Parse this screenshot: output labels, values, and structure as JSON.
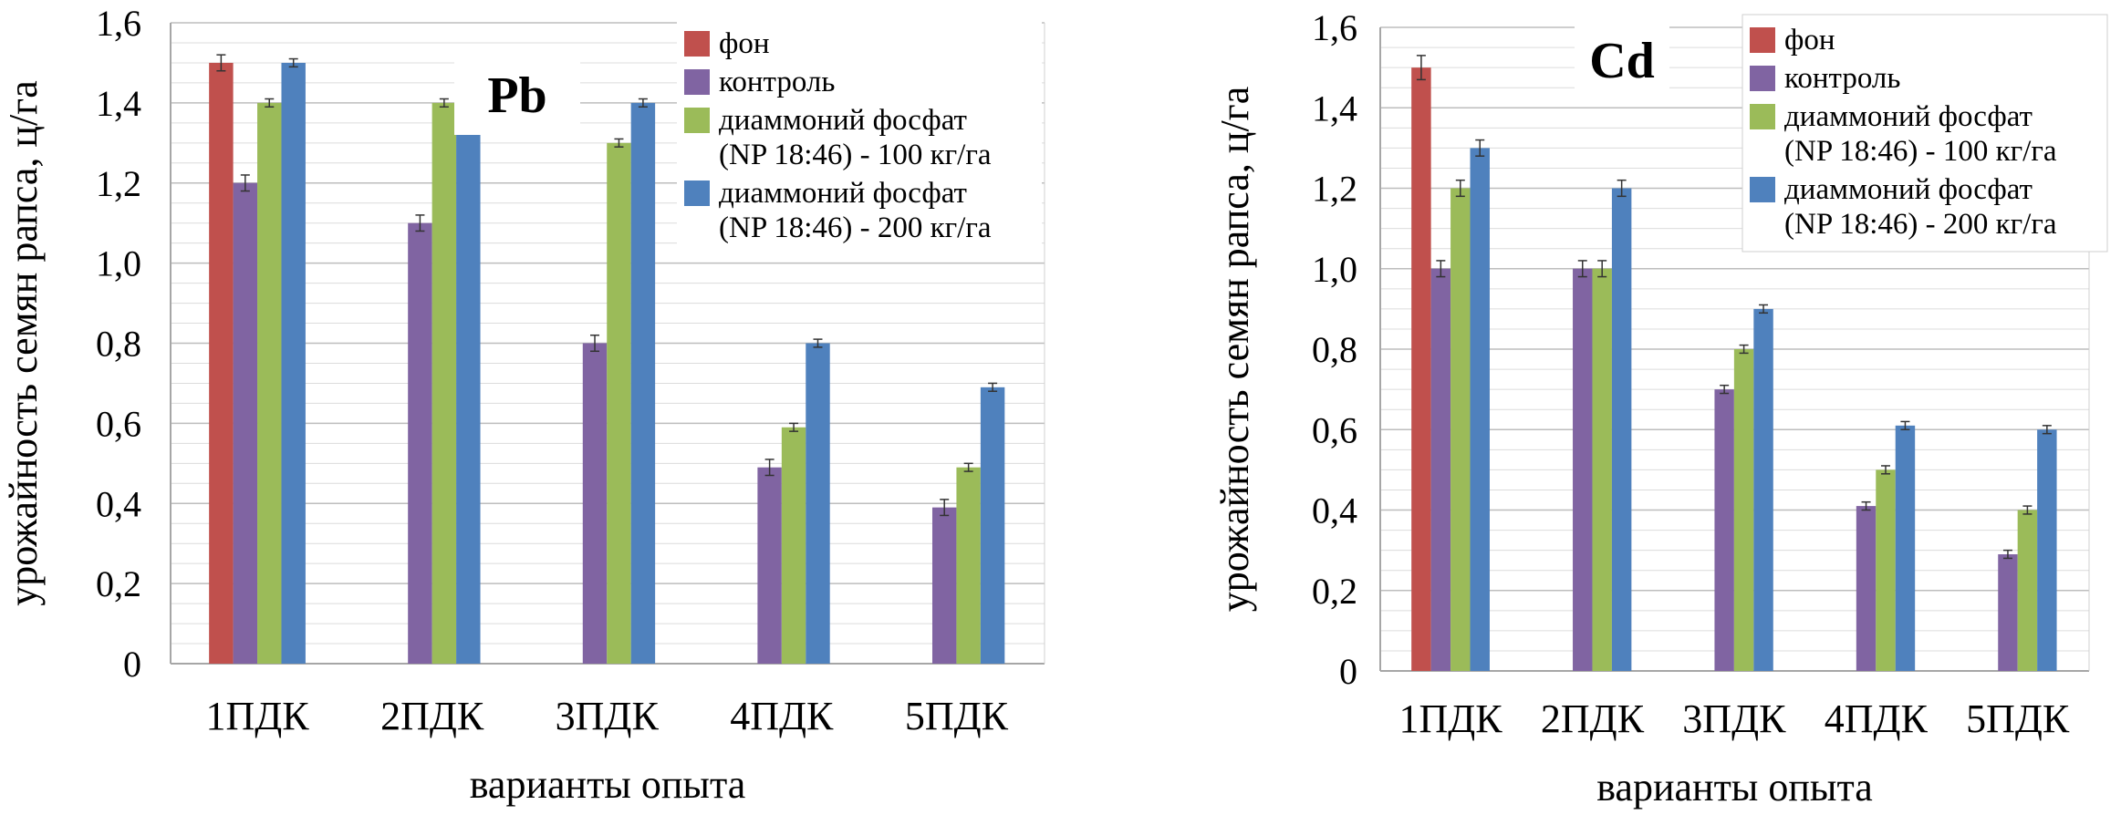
{
  "chart_data": [
    {
      "type": "bar",
      "title": "Pb",
      "xlabel": "варианты опыта",
      "ylabel": "урожайность семян рапса, ц/га",
      "ylim": [
        0,
        1.6
      ],
      "yticks": [
        "0",
        "0,2",
        "0,4",
        "0,6",
        "0,8",
        "1,0",
        "1,2",
        "1,4",
        "1,6"
      ],
      "grid": true,
      "legend_position": "top-right",
      "categories": [
        "1ПДК",
        "2ПДК",
        "3ПДК",
        "4ПДК",
        "5ПДК"
      ],
      "legend": [
        {
          "lines": [
            "фон"
          ]
        },
        {
          "lines": [
            "контроль"
          ]
        },
        {
          "lines": [
            "диаммоний фосфат",
            "(NP 18:46) - 100 кг/га"
          ]
        },
        {
          "lines": [
            "диаммоний фосфат",
            "(NP 18:46) - 200 кг/га"
          ]
        }
      ],
      "series": [
        {
          "name": "фон",
          "color": "#c0504d",
          "values": [
            1.5,
            null,
            null,
            null,
            null
          ],
          "errors": [
            0.02,
            null,
            null,
            null,
            null
          ]
        },
        {
          "name": "контроль",
          "color": "#8064a2",
          "values": [
            1.2,
            1.1,
            0.8,
            0.49,
            0.39
          ],
          "errors": [
            0.02,
            0.02,
            0.02,
            0.02,
            0.02
          ]
        },
        {
          "name": "диаммоний фосфат (NP 18:46) - 100 кг/га",
          "color": "#9bbb59",
          "values": [
            1.4,
            1.4,
            1.3,
            0.59,
            0.49
          ],
          "errors": [
            0.01,
            0.01,
            0.01,
            0.01,
            0.01
          ]
        },
        {
          "name": "диаммоний фосфат (NP 18:46) - 200 кг/га",
          "color": "#4f81bd",
          "values": [
            1.5,
            1.4,
            1.4,
            0.8,
            0.69
          ],
          "errors": [
            0.01,
            0.01,
            0.01,
            0.01,
            0.01
          ]
        }
      ]
    },
    {
      "type": "bar",
      "title": "Cd",
      "xlabel": "варианты опыта",
      "ylabel": "урожайность семян рапса, ц/га",
      "ylim": [
        0,
        1.6
      ],
      "yticks": [
        "0",
        "0,2",
        "0,4",
        "0,6",
        "0,8",
        "1,0",
        "1,2",
        "1,4",
        "1,6"
      ],
      "grid": true,
      "legend_position": "top-right",
      "categories": [
        "1ПДК",
        "2ПДК",
        "3ПДК",
        "4ПДК",
        "5ПДК"
      ],
      "legend": [
        {
          "lines": [
            "фон"
          ]
        },
        {
          "lines": [
            "контроль"
          ]
        },
        {
          "lines": [
            "диаммоний фосфат",
            "(NP 18:46) - 100 кг/га"
          ]
        },
        {
          "lines": [
            "диаммоний фосфат",
            "(NP 18:46) - 200 кг/га"
          ]
        }
      ],
      "series": [
        {
          "name": "фон",
          "color": "#c0504d",
          "values": [
            1.5,
            null,
            null,
            null,
            null
          ],
          "errors": [
            0.03,
            null,
            null,
            null,
            null
          ]
        },
        {
          "name": "контроль",
          "color": "#8064a2",
          "values": [
            1.0,
            1.0,
            0.7,
            0.41,
            0.29
          ],
          "errors": [
            0.02,
            0.02,
            0.01,
            0.01,
            0.01
          ]
        },
        {
          "name": "диаммоний фосфат (NP 18:46) - 100 кг/га",
          "color": "#9bbb59",
          "values": [
            1.2,
            1.0,
            0.8,
            0.5,
            0.4
          ],
          "errors": [
            0.02,
            0.02,
            0.01,
            0.01,
            0.01
          ]
        },
        {
          "name": "диаммоний фосфат (NP 18:46) - 200 кг/га",
          "color": "#4f81bd",
          "values": [
            1.3,
            1.2,
            0.9,
            0.61,
            0.6
          ],
          "errors": [
            0.02,
            0.02,
            0.01,
            0.01,
            0.01
          ]
        }
      ]
    }
  ]
}
